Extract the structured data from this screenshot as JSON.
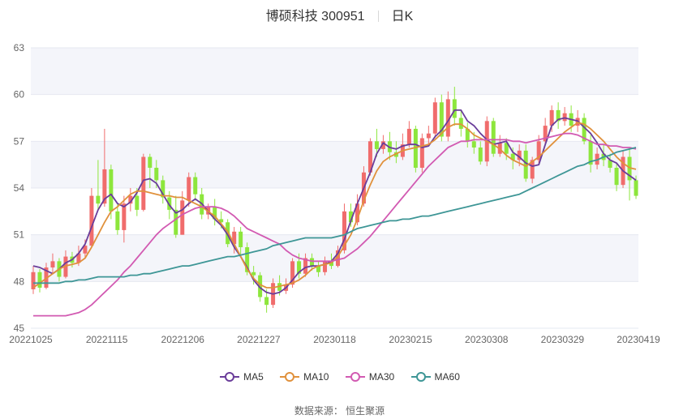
{
  "title": {
    "name": "博硕科技 300951",
    "period": "日K"
  },
  "source": {
    "label": "数据来源：",
    "value": "恒生聚源"
  },
  "chart_data": {
    "type": "candlestick",
    "ylim": [
      45,
      63
    ],
    "yticks": [
      "63",
      "60",
      "57",
      "54",
      "51",
      "48",
      "45"
    ],
    "xticks": [
      "20221025",
      "20221115",
      "20221206",
      "20221227",
      "20230118",
      "20230215",
      "20230308",
      "20230329",
      "20230419"
    ],
    "colors": {
      "up": "#f06c6c",
      "down": "#8de63c",
      "MA5": "#6a3d9a",
      "MA10": "#e0913c",
      "MA30": "#d25ab2",
      "MA60": "#3e9696",
      "band": "#f4f5fa"
    },
    "series": [
      {
        "name": "MA5",
        "values": [
          49.0,
          48.9,
          48.7,
          48.5,
          48.8,
          49.2,
          49.4,
          49.8,
          50.4,
          51.5,
          52.6,
          53.3,
          53.6,
          53.0,
          52.8,
          53.1,
          53.7,
          54.5,
          54.6,
          54.3,
          53.6,
          52.9,
          52.4,
          52.6,
          53.0,
          53.3,
          53.0,
          52.5,
          52.0,
          51.6,
          51.0,
          50.2,
          49.6,
          48.9,
          48.1,
          47.6,
          47.3,
          47.2,
          47.3,
          47.6,
          48.1,
          48.6,
          48.9,
          49.0,
          49.0,
          49.1,
          49.3,
          49.8,
          50.7,
          51.9,
          53.0,
          54.0,
          55.0,
          56.2,
          56.9,
          56.6,
          56.5,
          56.7,
          56.8,
          56.8,
          56.6,
          56.7,
          57.3,
          57.7,
          58.3,
          59.0,
          59.0,
          58.3,
          58.0,
          57.5,
          57.1,
          56.8,
          56.9,
          57.0,
          56.3,
          56.0,
          55.6,
          55.4,
          55.5,
          56.8,
          58.0,
          58.4,
          58.5,
          58.4,
          58.3,
          57.9,
          57.5,
          56.9,
          56.2,
          55.8,
          55.6,
          55.1,
          54.8,
          54.5
        ]
      },
      {
        "name": "MA10",
        "values": [
          47.6,
          47.9,
          48.2,
          48.5,
          48.8,
          49.0,
          49.1,
          49.2,
          49.5,
          50.2,
          51.0,
          51.8,
          52.5,
          52.8,
          53.2,
          53.6,
          53.8,
          53.8,
          53.7,
          53.6,
          53.5,
          53.5,
          53.4,
          53.4,
          53.2,
          53.0,
          52.8,
          52.5,
          52.2,
          51.7,
          51.2,
          50.4,
          49.6,
          48.8,
          48.2,
          47.8,
          47.6,
          47.6,
          47.7,
          47.8,
          47.9,
          48.1,
          48.4,
          48.8,
          49.0,
          49.1,
          49.2,
          49.6,
          50.3,
          51.0,
          52.0,
          53.2,
          54.2,
          55.1,
          55.7,
          56.0,
          56.2,
          56.4,
          56.5,
          56.6,
          56.7,
          56.8,
          57.1,
          57.5,
          57.9,
          58.1,
          58.1,
          57.8,
          57.4,
          57.2,
          57.0,
          56.8,
          56.5,
          56.1,
          55.8,
          55.6,
          55.4,
          55.7,
          56.0,
          56.4,
          56.8,
          57.2,
          57.6,
          57.9,
          58.2,
          58.1,
          57.8,
          57.4,
          57.0,
          56.5,
          56.0,
          55.6,
          55.3,
          55.2
        ]
      },
      {
        "name": "MA30",
        "values": [
          45.8,
          45.8,
          45.8,
          45.8,
          45.8,
          45.8,
          45.9,
          46.0,
          46.2,
          46.5,
          46.9,
          47.3,
          47.7,
          48.1,
          48.6,
          49.0,
          49.5,
          50.0,
          50.5,
          51.0,
          51.4,
          51.7,
          52.0,
          52.3,
          52.5,
          52.7,
          52.8,
          52.8,
          52.8,
          52.7,
          52.5,
          52.2,
          51.8,
          51.4,
          51.2,
          51.0,
          50.8,
          50.6,
          50.4,
          50.0,
          49.7,
          49.5,
          49.4,
          49.3,
          49.3,
          49.3,
          49.3,
          49.4,
          49.5,
          49.8,
          50.1,
          50.5,
          50.9,
          51.4,
          51.9,
          52.4,
          52.9,
          53.4,
          53.9,
          54.4,
          54.9,
          55.4,
          55.8,
          56.2,
          56.6,
          56.8,
          57.0,
          57.0,
          57.1,
          57.1,
          57.1,
          57.1,
          57.1,
          57.1,
          57.0,
          57.0,
          56.9,
          57.0,
          57.1,
          57.2,
          57.3,
          57.4,
          57.5,
          57.5,
          57.4,
          57.2,
          57.0,
          56.8,
          56.8,
          56.7,
          56.7,
          56.6,
          56.6,
          56.5
        ]
      },
      {
        "name": "MA60",
        "values": [
          47.9,
          47.9,
          47.9,
          47.9,
          47.9,
          48.0,
          48.0,
          48.1,
          48.1,
          48.2,
          48.3,
          48.3,
          48.3,
          48.3,
          48.3,
          48.4,
          48.4,
          48.5,
          48.5,
          48.6,
          48.7,
          48.8,
          48.9,
          49.0,
          49.0,
          49.1,
          49.2,
          49.3,
          49.4,
          49.5,
          49.6,
          49.6,
          49.7,
          49.8,
          49.9,
          50.0,
          50.1,
          50.3,
          50.4,
          50.5,
          50.6,
          50.7,
          50.8,
          50.8,
          50.8,
          50.8,
          50.8,
          50.9,
          51.0,
          51.2,
          51.4,
          51.5,
          51.6,
          51.7,
          51.8,
          51.9,
          51.9,
          52.0,
          52.0,
          52.1,
          52.2,
          52.2,
          52.3,
          52.4,
          52.5,
          52.6,
          52.7,
          52.8,
          52.9,
          53.0,
          53.1,
          53.2,
          53.3,
          53.4,
          53.5,
          53.6,
          53.8,
          54.0,
          54.2,
          54.4,
          54.6,
          54.8,
          55.0,
          55.2,
          55.4,
          55.5,
          55.7,
          55.8,
          56.0,
          56.1,
          56.3,
          56.4,
          56.5,
          56.6
        ]
      }
    ],
    "candles": [
      [
        47.5,
        48.6,
        49.0,
        47.2
      ],
      [
        48.6,
        47.6,
        48.8,
        47.3
      ],
      [
        47.6,
        48.9,
        49.2,
        47.5
      ],
      [
        48.9,
        49.3,
        49.8,
        48.5
      ],
      [
        49.3,
        48.3,
        49.5,
        48.0
      ],
      [
        48.3,
        49.6,
        50.0,
        48.2
      ],
      [
        49.6,
        49.2,
        49.9,
        48.9
      ],
      [
        49.2,
        49.8,
        50.3,
        49.0
      ],
      [
        49.8,
        50.3,
        50.7,
        49.5
      ],
      [
        50.3,
        53.5,
        54.0,
        50.2
      ],
      [
        53.5,
        53.0,
        55.8,
        52.6
      ],
      [
        53.0,
        55.2,
        57.8,
        52.8
      ],
      [
        55.2,
        52.5,
        55.5,
        52.0
      ],
      [
        52.5,
        51.3,
        53.0,
        51.0
      ],
      [
        51.3,
        53.0,
        53.5,
        50.5
      ],
      [
        53.0,
        53.5,
        54.0,
        52.5
      ],
      [
        53.5,
        52.6,
        54.0,
        52.2
      ],
      [
        52.6,
        56.0,
        56.2,
        52.5
      ],
      [
        56.0,
        55.3,
        56.2,
        54.0
      ],
      [
        55.3,
        54.5,
        55.8,
        54.0
      ],
      [
        54.5,
        53.4,
        54.8,
        53.0
      ],
      [
        53.4,
        52.6,
        53.8,
        52.0
      ],
      [
        52.6,
        51.0,
        53.5,
        50.8
      ],
      [
        51.0,
        53.2,
        53.8,
        51.0
      ],
      [
        53.2,
        54.7,
        55.0,
        52.8
      ],
      [
        54.7,
        53.6,
        55.0,
        53.2
      ],
      [
        53.6,
        52.3,
        54.0,
        52.0
      ],
      [
        52.3,
        52.8,
        53.0,
        52.0
      ],
      [
        52.8,
        52.0,
        53.3,
        51.6
      ],
      [
        52.0,
        51.8,
        52.5,
        51.4
      ],
      [
        51.8,
        50.4,
        52.0,
        50.2
      ],
      [
        50.4,
        51.2,
        51.5,
        49.8
      ],
      [
        51.2,
        50.2,
        51.5,
        49.7
      ],
      [
        50.2,
        48.6,
        50.5,
        48.4
      ],
      [
        48.6,
        48.4,
        49.0,
        47.8
      ],
      [
        48.4,
        47.0,
        48.6,
        46.7
      ],
      [
        47.0,
        46.5,
        47.5,
        46.0
      ],
      [
        46.5,
        47.9,
        48.2,
        46.3
      ],
      [
        47.9,
        47.4,
        48.4,
        47.1
      ],
      [
        47.4,
        47.8,
        48.2,
        47.2
      ],
      [
        47.8,
        49.3,
        49.5,
        47.6
      ],
      [
        49.3,
        48.5,
        49.8,
        48.2
      ],
      [
        48.5,
        49.5,
        49.8,
        48.3
      ],
      [
        49.5,
        49.0,
        49.8,
        48.7
      ],
      [
        49.0,
        48.6,
        49.3,
        48.3
      ],
      [
        48.6,
        49.3,
        49.6,
        48.4
      ],
      [
        49.3,
        49.0,
        49.8,
        48.8
      ],
      [
        49.0,
        50.0,
        50.3,
        48.9
      ],
      [
        50.0,
        52.5,
        53.0,
        49.8
      ],
      [
        52.5,
        51.8,
        53.0,
        51.5
      ],
      [
        51.8,
        53.0,
        53.6,
        51.6
      ],
      [
        53.0,
        55.0,
        55.4,
        52.8
      ],
      [
        55.0,
        57.0,
        57.2,
        54.8
      ],
      [
        57.0,
        56.5,
        57.8,
        56.0
      ],
      [
        56.5,
        57.0,
        57.4,
        56.2
      ],
      [
        57.0,
        56.3,
        57.6,
        55.8
      ],
      [
        56.3,
        56.0,
        57.0,
        55.6
      ],
      [
        56.0,
        56.8,
        57.5,
        55.8
      ],
      [
        56.8,
        57.8,
        58.3,
        56.6
      ],
      [
        57.8,
        55.3,
        58.0,
        55.0
      ],
      [
        55.3,
        57.2,
        57.5,
        55.0
      ],
      [
        57.2,
        57.5,
        58.0,
        56.8
      ],
      [
        57.5,
        59.5,
        59.8,
        57.2
      ],
      [
        59.5,
        57.3,
        60.0,
        57.0
      ],
      [
        57.3,
        59.7,
        60.2,
        57.0
      ],
      [
        59.7,
        58.5,
        60.5,
        58.0
      ],
      [
        58.5,
        57.8,
        59.0,
        57.3
      ],
      [
        57.8,
        57.0,
        58.2,
        56.6
      ],
      [
        57.0,
        56.6,
        57.6,
        56.2
      ],
      [
        56.6,
        55.7,
        57.0,
        55.5
      ],
      [
        55.7,
        58.3,
        58.6,
        55.4
      ],
      [
        58.3,
        56.2,
        58.5,
        56.0
      ],
      [
        56.2,
        56.9,
        57.4,
        56.0
      ],
      [
        56.9,
        56.2,
        57.2,
        55.8
      ],
      [
        56.2,
        55.8,
        56.6,
        55.2
      ],
      [
        55.8,
        56.4,
        56.8,
        55.4
      ],
      [
        56.4,
        54.6,
        56.8,
        54.4
      ],
      [
        54.6,
        55.8,
        56.0,
        54.3
      ],
      [
        55.8,
        57.0,
        57.4,
        55.6
      ],
      [
        57.0,
        58.0,
        58.5,
        56.8
      ],
      [
        58.0,
        59.0,
        59.3,
        57.6
      ],
      [
        59.0,
        58.3,
        59.5,
        57.8
      ],
      [
        58.3,
        58.8,
        59.2,
        58.0
      ],
      [
        58.8,
        58.0,
        59.3,
        57.6
      ],
      [
        58.0,
        58.5,
        59.0,
        57.6
      ],
      [
        58.5,
        57.0,
        58.8,
        56.8
      ],
      [
        57.0,
        55.5,
        57.4,
        55.0
      ],
      [
        55.5,
        56.2,
        56.6,
        55.2
      ],
      [
        56.2,
        55.8,
        56.8,
        55.4
      ],
      [
        55.8,
        55.3,
        56.2,
        55.0
      ],
      [
        55.3,
        54.2,
        55.6,
        53.8
      ],
      [
        54.2,
        56.0,
        56.4,
        54.0
      ],
      [
        56.0,
        54.5,
        56.5,
        53.2
      ],
      [
        54.5,
        53.5,
        54.8,
        53.3
      ]
    ]
  },
  "legend": {
    "items": [
      {
        "key": "MA5",
        "label": "MA5"
      },
      {
        "key": "MA10",
        "label": "MA10"
      },
      {
        "key": "MA30",
        "label": "MA30"
      },
      {
        "key": "MA60",
        "label": "MA60"
      }
    ]
  }
}
